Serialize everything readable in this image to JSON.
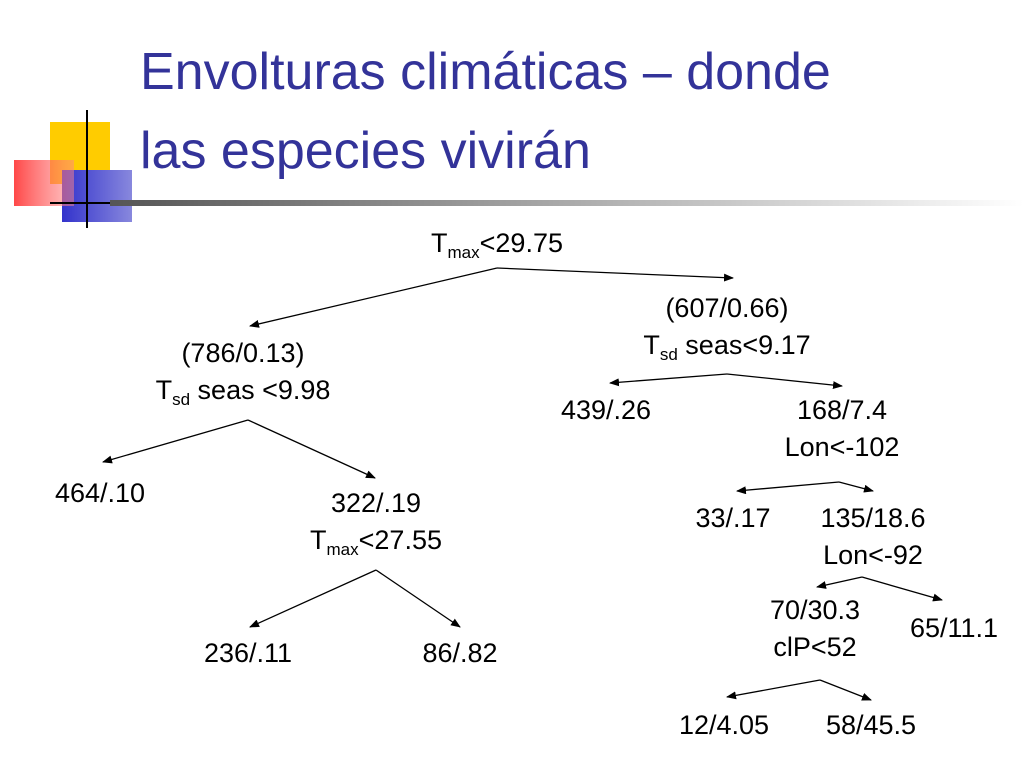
{
  "title": {
    "line1": "Envolturas climáticas – donde",
    "line2": "las especies vivirán"
  },
  "colors": {
    "title": "#333399",
    "deco_yellow": "#ffcc00",
    "deco_red": "#ff3333",
    "deco_blue": "#3333cc"
  },
  "tree": {
    "root": {
      "var": "T",
      "sub": "max",
      "rest": "<29.75"
    },
    "n_left": {
      "stat": "(786/0.13)",
      "var": "T",
      "sub": "sd",
      "rest": " seas <9.98"
    },
    "n_right": {
      "stat": "(607/0.66)",
      "var": "T",
      "sub": "sd",
      "rest": " seas<9.17"
    },
    "leaf_464": "464/.10",
    "n_322": {
      "stat": "322/.19",
      "var": "T",
      "sub": "max",
      "rest": "<27.55"
    },
    "leaf_236": "236/.11",
    "leaf_86": "86/.82",
    "leaf_439": "439/.26",
    "n_168": {
      "stat": "168/7.4",
      "split": "Lon<-102"
    },
    "leaf_33": "33/.17",
    "n_135": {
      "stat": "135/18.6",
      "split": "Lon<-92"
    },
    "n_70": {
      "stat": "70/30.3",
      "split": "clP<52"
    },
    "leaf_65": "65/11.1",
    "leaf_12": "12/4.05",
    "leaf_58": "58/45.5"
  }
}
